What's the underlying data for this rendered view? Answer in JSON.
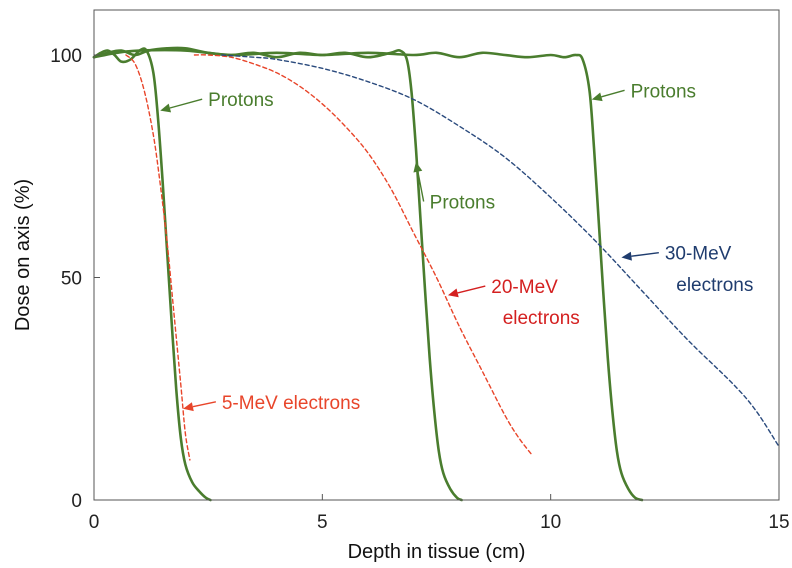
{
  "chart_data": {
    "type": "line",
    "title": "",
    "xlabel": "Depth in tissue (cm)",
    "ylabel": "Dose on axis (%)",
    "xlim": [
      0,
      15
    ],
    "ylim": [
      0,
      105
    ],
    "xticks": [
      0,
      5,
      10,
      15
    ],
    "yticks": [
      0,
      50,
      100
    ],
    "grid": false,
    "legend": "none",
    "series": [
      {
        "color": "#4a7d2e",
        "dash": "solid",
        "x": [
          0,
          0.15,
          0.3,
          0.45,
          0.6,
          0.8,
          1.0,
          1.15,
          1.3,
          1.4,
          1.5,
          1.6,
          1.7,
          1.8,
          1.9,
          2.0,
          2.15,
          2.3,
          2.45,
          2.55
        ],
        "y": [
          99.5,
          100.5,
          101,
          100,
          98.5,
          99,
          101,
          101,
          96,
          86,
          72,
          56,
          40,
          25,
          14,
          8,
          4,
          2,
          0.5,
          0
        ]
      },
      {
        "color": "#4a7d2e",
        "dash": "solid",
        "x": [
          0,
          0.3,
          0.6,
          0.9,
          1.2,
          1.6,
          2.0,
          2.5,
          3.0,
          3.5,
          4.0,
          4.5,
          5.0,
          5.5,
          6.0,
          6.5,
          6.7,
          6.85,
          6.95,
          7.05,
          7.15,
          7.25,
          7.35,
          7.45,
          7.55,
          7.65,
          7.8,
          7.95,
          8.05
        ],
        "y": [
          99.5,
          100.5,
          101,
          100,
          101,
          101.5,
          101.5,
          100.5,
          100,
          100.5,
          99.5,
          100.5,
          100,
          100.5,
          99.5,
          100.5,
          101,
          99,
          92,
          79,
          63,
          47,
          32,
          20,
          11,
          6,
          2.5,
          0.5,
          0
        ]
      },
      {
        "color": "#4a7d2e",
        "dash": "solid",
        "x": [
          0,
          0.5,
          1.0,
          2.0,
          3.0,
          4.0,
          5.0,
          6.0,
          7.0,
          7.5,
          8.0,
          8.5,
          9.0,
          9.5,
          10.0,
          10.3,
          10.55,
          10.7,
          10.85,
          10.95,
          11.05,
          11.15,
          11.25,
          11.35,
          11.45,
          11.55,
          11.7,
          11.85,
          12.0
        ],
        "y": [
          99.5,
          100.5,
          101,
          101,
          100,
          100.5,
          100,
          100.5,
          100,
          100.5,
          99.5,
          100.5,
          100,
          99.5,
          100,
          99.5,
          100,
          99,
          92,
          79,
          63,
          47,
          32,
          20,
          11,
          6,
          2.5,
          0.5,
          0
        ]
      },
      {
        "color": "#e8452a",
        "dash": "dashed",
        "x": [
          0.7,
          0.9,
          1.1,
          1.3,
          1.45,
          1.6,
          1.75,
          1.9,
          2.0,
          2.1
        ],
        "y": [
          100,
          98,
          92,
          82,
          71,
          58,
          42,
          26,
          15,
          9
        ]
      },
      {
        "color": "#e8452a",
        "dash": "dashed",
        "x": [
          2.2,
          2.5,
          3.0,
          3.5,
          4.0,
          4.5,
          5.0,
          5.5,
          6.0,
          6.5,
          7.0,
          7.5,
          8.0,
          8.5,
          9.0,
          9.3,
          9.6
        ],
        "y": [
          100,
          100,
          99.5,
          98,
          96,
          93,
          89,
          84,
          78,
          70,
          60,
          50,
          39,
          29,
          19,
          14,
          10
        ]
      },
      {
        "color": "#2a4a7d",
        "dash": "dashed",
        "x": [
          2.8,
          3.5,
          4.0,
          5.0,
          6.0,
          7.0,
          8.0,
          9.0,
          10.0,
          11.0,
          12.0,
          13.0,
          14.0,
          14.5,
          15.0
        ],
        "y": [
          100,
          99.5,
          99,
          97,
          94,
          90,
          84,
          77,
          68,
          58,
          47,
          36,
          26,
          20,
          12
        ]
      }
    ],
    "annotations": [
      {
        "text": "Protons",
        "color": "#4a7d2e",
        "x": 2.5,
        "y": 88.5,
        "arrow_to": [
          1.45,
          87.5
        ]
      },
      {
        "text": "Protons",
        "color": "#4a7d2e",
        "x": 7.35,
        "y": 65.5,
        "arrow_to": [
          7.05,
          76
        ]
      },
      {
        "text": "Protons",
        "color": "#4a7d2e",
        "x": 11.75,
        "y": 90.5,
        "arrow_to": [
          10.9,
          90
        ]
      },
      {
        "text": "5-MeV electrons",
        "color": "#e8452a",
        "x": 2.8,
        "y": 20.5,
        "arrow_to": [
          1.95,
          20.5
        ]
      },
      {
        "text": "20-MeV",
        "color": "#d42020",
        "x": 8.7,
        "y": 46.5,
        "arrow_to": [
          7.75,
          46
        ]
      },
      {
        "text": "electrons",
        "color": "#d42020",
        "x": 8.95,
        "y": 39.5
      },
      {
        "text": "30-MeV",
        "color": "#1f3c6e",
        "x": 12.5,
        "y": 54,
        "arrow_to": [
          11.55,
          54.5
        ]
      },
      {
        "text": "electrons",
        "color": "#1f3c6e",
        "x": 12.75,
        "y": 47
      }
    ]
  }
}
